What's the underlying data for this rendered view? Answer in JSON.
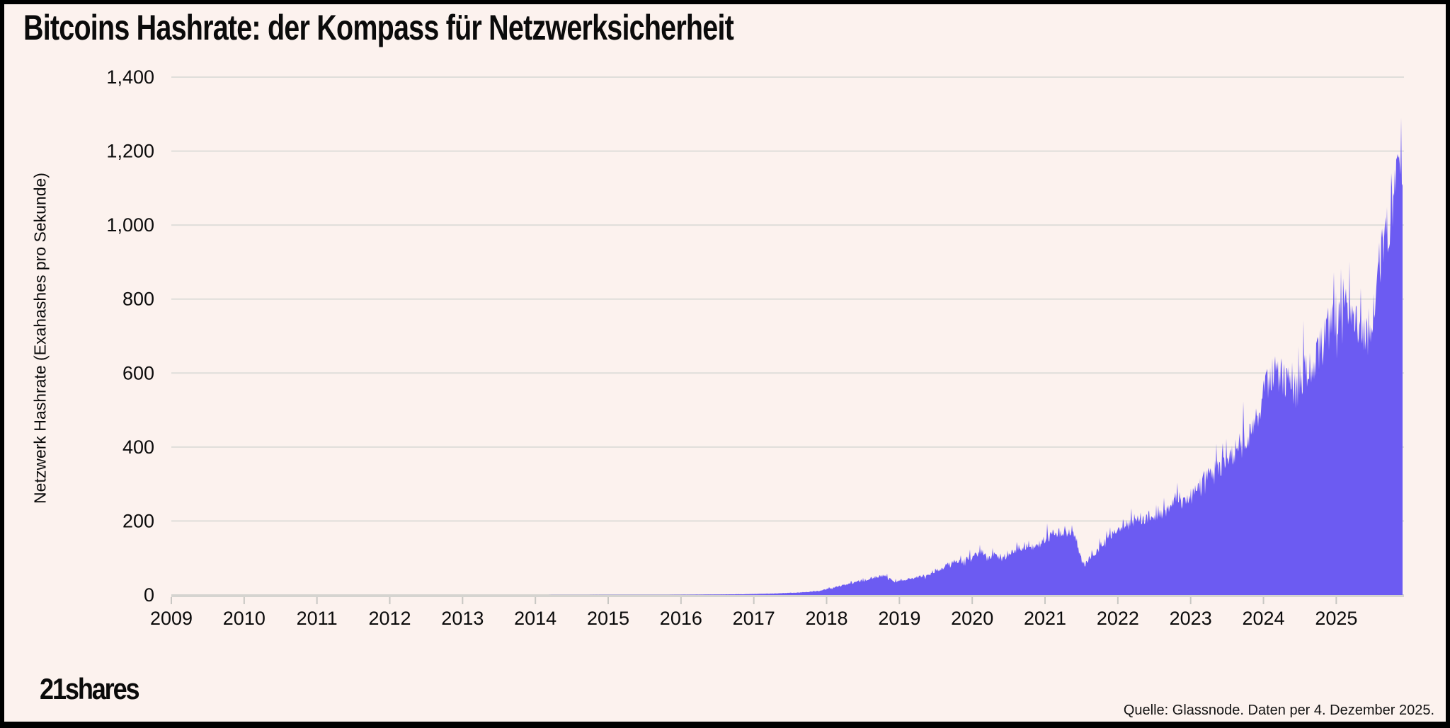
{
  "header": {
    "title": "Bitcoins Hashrate: der Kompass für Netzwerksicherheit"
  },
  "footer": {
    "logo": "21shares",
    "source": "Quelle: Glassnode. Daten per 4. Dezember 2025."
  },
  "colors": {
    "frame_border": "#000000",
    "background": "#FCF2EE",
    "area": "#6C5BF2",
    "grid": "#DFDEDA",
    "axis_line": "#D5D4D0",
    "tick": "#C8C7C3",
    "text": "#0B0B0B"
  },
  "chart_data": {
    "type": "area",
    "title": "Bitcoins Hashrate: der Kompass für Netzwerksicherheit",
    "xlabel": "",
    "ylabel": "Netzwerk Hashrate (Exahashes pro Sekunde)",
    "unit": "Exahashes pro Sekunde",
    "x_range": [
      2009,
      2025.93
    ],
    "ylim": [
      0,
      1400
    ],
    "grid": "horizontal-only",
    "legend": "none",
    "yticks": {
      "values": [
        0,
        200,
        400,
        600,
        800,
        1000,
        1200,
        1400
      ],
      "labels": [
        "0",
        "200",
        "400",
        "600",
        "800",
        "1,000",
        "1,200",
        "1,400"
      ]
    },
    "xticks": {
      "values": [
        2009,
        2010,
        2011,
        2012,
        2013,
        2014,
        2015,
        2016,
        2017,
        2018,
        2019,
        2020,
        2021,
        2022,
        2023,
        2024,
        2025
      ],
      "labels": [
        "2009",
        "2010",
        "2011",
        "2012",
        "2013",
        "2014",
        "2015",
        "2016",
        "2017",
        "2018",
        "2019",
        "2020",
        "2021",
        "2022",
        "2023",
        "2024",
        "2025"
      ]
    },
    "series": [
      {
        "name": "Netzwerk Hashrate",
        "points": [
          [
            2009,
            0
          ],
          [
            2012,
            0
          ],
          [
            2014,
            0.03
          ],
          [
            2015,
            0.35
          ],
          [
            2015.8,
            0.6
          ],
          [
            2016.2,
            1.0
          ],
          [
            2016.6,
            1.6
          ],
          [
            2016.9,
            2.2
          ],
          [
            2017.1,
            3.2
          ],
          [
            2017.3,
            4.2
          ],
          [
            2017.5,
            5.6
          ],
          [
            2017.7,
            7.6
          ],
          [
            2017.9,
            11
          ],
          [
            2018.0,
            16
          ],
          [
            2018.1,
            20
          ],
          [
            2018.2,
            25
          ],
          [
            2018.3,
            30
          ],
          [
            2018.4,
            35
          ],
          [
            2018.5,
            39
          ],
          [
            2018.6,
            44
          ],
          [
            2018.7,
            49
          ],
          [
            2018.75,
            52
          ],
          [
            2018.8,
            50
          ],
          [
            2018.85,
            45
          ],
          [
            2018.9,
            39
          ],
          [
            2018.95,
            36
          ],
          [
            2019.0,
            40
          ],
          [
            2019.1,
            43
          ],
          [
            2019.2,
            46
          ],
          [
            2019.3,
            50
          ],
          [
            2019.4,
            56
          ],
          [
            2019.5,
            64
          ],
          [
            2019.6,
            74
          ],
          [
            2019.7,
            84
          ],
          [
            2019.75,
            90
          ],
          [
            2019.8,
            93
          ],
          [
            2019.85,
            90
          ],
          [
            2019.92,
            95
          ],
          [
            2020.0,
            104
          ],
          [
            2020.1,
            113
          ],
          [
            2020.15,
            118
          ],
          [
            2020.2,
            100
          ],
          [
            2020.27,
            108
          ],
          [
            2020.32,
            112
          ],
          [
            2020.38,
            95
          ],
          [
            2020.44,
            102
          ],
          [
            2020.5,
            114
          ],
          [
            2020.6,
            122
          ],
          [
            2020.7,
            129
          ],
          [
            2020.78,
            139
          ],
          [
            2020.84,
            124
          ],
          [
            2020.92,
            135
          ],
          [
            2021.0,
            151
          ],
          [
            2021.1,
            163
          ],
          [
            2021.2,
            168
          ],
          [
            2021.3,
            172
          ],
          [
            2021.36,
            177
          ],
          [
            2021.42,
            158
          ],
          [
            2021.48,
            112
          ],
          [
            2021.53,
            74
          ],
          [
            2021.6,
            96
          ],
          [
            2021.7,
            119
          ],
          [
            2021.8,
            141
          ],
          [
            2021.9,
            159
          ],
          [
            2022.0,
            179
          ],
          [
            2022.1,
            193
          ],
          [
            2022.2,
            201
          ],
          [
            2022.3,
            206
          ],
          [
            2022.4,
            212
          ],
          [
            2022.5,
            207
          ],
          [
            2022.6,
            219
          ],
          [
            2022.7,
            233
          ],
          [
            2022.76,
            249
          ],
          [
            2022.82,
            257
          ],
          [
            2022.9,
            251
          ],
          [
            2023.0,
            263
          ],
          [
            2023.1,
            286
          ],
          [
            2023.2,
            313
          ],
          [
            2023.3,
            331
          ],
          [
            2023.4,
            349
          ],
          [
            2023.5,
            371
          ],
          [
            2023.6,
            389
          ],
          [
            2023.7,
            406
          ],
          [
            2023.8,
            429
          ],
          [
            2023.9,
            472
          ],
          [
            2024.0,
            560
          ],
          [
            2024.1,
            591
          ],
          [
            2024.2,
            601
          ],
          [
            2024.3,
            583
          ],
          [
            2024.4,
            553
          ],
          [
            2024.5,
            579
          ],
          [
            2024.6,
            606
          ],
          [
            2024.7,
            633
          ],
          [
            2024.8,
            673
          ],
          [
            2024.9,
            719
          ],
          [
            2025.0,
            763
          ],
          [
            2025.08,
            791
          ],
          [
            2025.16,
            789
          ],
          [
            2025.24,
            742
          ],
          [
            2025.3,
            701
          ],
          [
            2025.36,
            682
          ],
          [
            2025.42,
            703
          ],
          [
            2025.5,
            762
          ],
          [
            2025.58,
            852
          ],
          [
            2025.66,
            950
          ],
          [
            2025.72,
            1020
          ],
          [
            2025.78,
            1090
          ],
          [
            2025.84,
            1145
          ],
          [
            2025.88,
            1115
          ],
          [
            2025.93,
            1005
          ]
        ]
      }
    ],
    "noise": {
      "seed": 1337,
      "amp": 0.09,
      "spike_prob": 0.1,
      "spike_amp": 0.2,
      "notch_prob": 0.05,
      "notch_amp": 0.15,
      "max_value": 1290
    }
  }
}
